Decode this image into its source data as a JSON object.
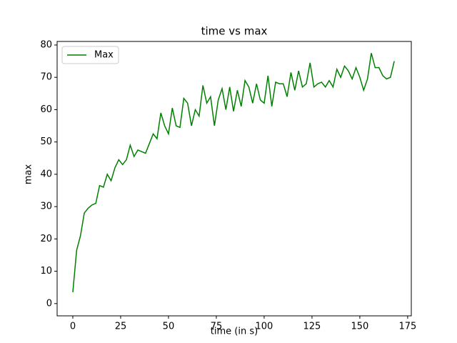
{
  "chart_data": {
    "type": "line",
    "title": "time vs max",
    "xlabel": "time (in s)",
    "ylabel": "max",
    "x": [
      0,
      2,
      4,
      6,
      8,
      10,
      12,
      14,
      16,
      18,
      20,
      22,
      24,
      26,
      28,
      30,
      32,
      34,
      36,
      38,
      40,
      42,
      44,
      46,
      48,
      50,
      52,
      54,
      56,
      58,
      60,
      62,
      64,
      66,
      68,
      70,
      72,
      74,
      76,
      78,
      80,
      82,
      84,
      86,
      88,
      90,
      92,
      94,
      96,
      98,
      100,
      102,
      104,
      106,
      108,
      110,
      112,
      114,
      116,
      118,
      120,
      122,
      124,
      126,
      128,
      130,
      132,
      134,
      136,
      138,
      140,
      142,
      144,
      146,
      148,
      150,
      152,
      154,
      156,
      158,
      160,
      162,
      164,
      166,
      168
    ],
    "series": [
      {
        "name": "Max",
        "color": "#008000",
        "values": [
          3.5,
          16.5,
          21,
          28,
          29.5,
          30.5,
          31,
          36.5,
          36,
          40,
          38,
          42,
          44.5,
          43,
          44.5,
          49,
          45.5,
          47.5,
          47,
          46.5,
          49.5,
          52.5,
          51,
          59,
          55,
          52.5,
          60.5,
          55,
          54.5,
          63.5,
          62,
          55,
          60,
          58,
          67.5,
          62,
          64,
          55,
          63,
          66.5,
          60,
          67,
          59.5,
          66,
          61,
          69,
          67,
          62,
          68,
          63,
          62,
          70.5,
          61,
          68.5,
          68,
          68,
          64,
          71.5,
          66,
          72,
          67,
          68,
          74.5,
          67,
          68,
          68.5,
          67,
          69,
          67,
          72.5,
          70,
          73.5,
          72,
          69.5,
          73,
          70,
          66,
          69.5,
          77.5,
          73,
          73,
          70.5,
          69.5,
          70,
          75
        ]
      }
    ],
    "xlim": [
      -8.2,
      176.9
    ],
    "ylim": [
      -3.8,
      81.1
    ],
    "xticks": [
      0,
      25,
      50,
      75,
      100,
      125,
      150,
      175
    ],
    "yticks": [
      0,
      10,
      20,
      30,
      40,
      50,
      60,
      70,
      80
    ],
    "legend": "upper left",
    "grid": false
  }
}
